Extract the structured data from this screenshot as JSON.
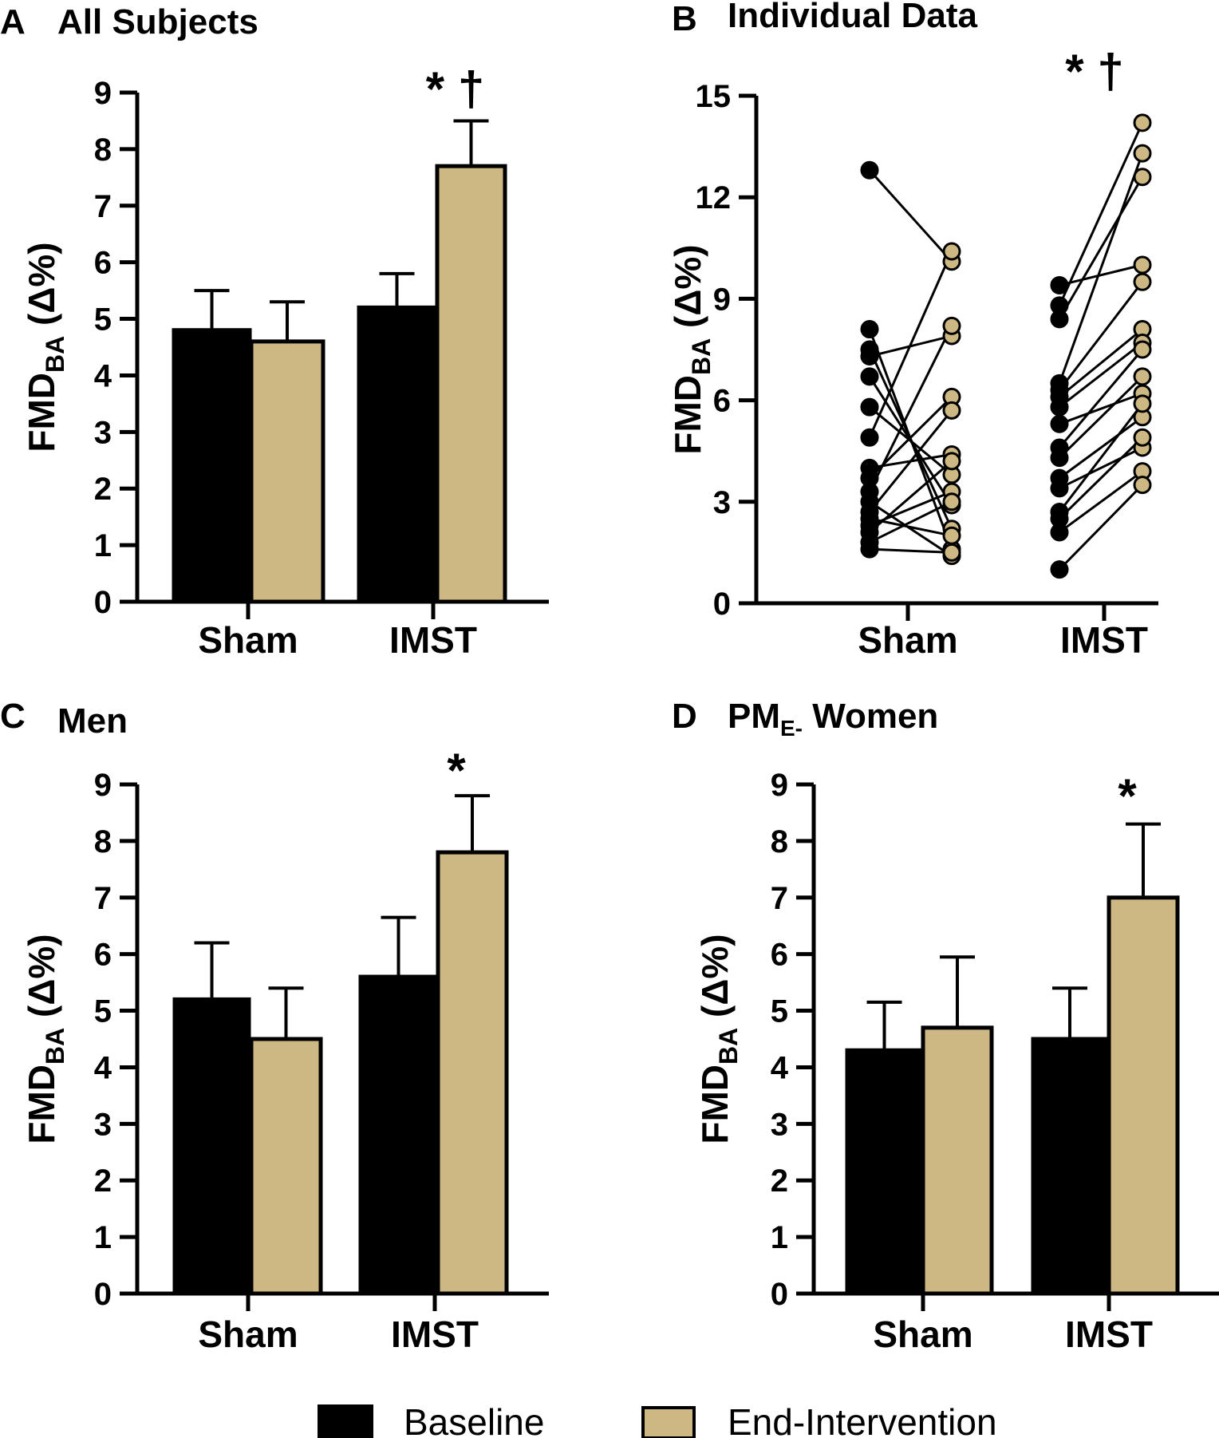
{
  "colors": {
    "baseline": "#000000",
    "end": "#cdb883",
    "axis": "#000000"
  },
  "legend": [
    {
      "label": "Baseline",
      "color_key": "baseline"
    },
    {
      "label": "End-Intervention",
      "color_key": "end"
    }
  ],
  "chart_data": [
    {
      "type": "bar",
      "panel": "A",
      "title": "All Subjects",
      "ylabel": "FMD",
      "ylabel_sub": "BA",
      "ylabel_tail": " (Δ%)",
      "ylim": [
        0,
        9
      ],
      "yticks": [
        0,
        1,
        2,
        3,
        4,
        5,
        6,
        7,
        8,
        9
      ],
      "categories": [
        "Sham",
        "IMST"
      ],
      "series": [
        {
          "name": "Baseline",
          "values": [
            4.8,
            5.2
          ],
          "errors": [
            0.7,
            0.6
          ]
        },
        {
          "name": "End-Intervention",
          "values": [
            4.6,
            7.7
          ],
          "errors": [
            0.7,
            0.8
          ]
        }
      ],
      "significance": [
        "",
        "* †"
      ]
    },
    {
      "type": "scatter",
      "panel": "B",
      "title": "Individual Data",
      "ylabel": "FMD",
      "ylabel_sub": "BA",
      "ylabel_tail": " (Δ%)",
      "ylim": [
        0,
        15
      ],
      "yticks": [
        0,
        3,
        6,
        9,
        12,
        15
      ],
      "categories": [
        "Sham",
        "IMST"
      ],
      "pairs": [
        {
          "group": "Sham",
          "baseline": [
            12.8,
            8.1,
            7.5,
            7.3,
            6.7,
            5.8,
            4.9,
            4.0,
            3.7,
            3.3,
            3.0,
            2.7,
            2.5,
            2.3,
            2.1,
            1.8,
            1.6
          ],
          "end": [
            10.1,
            1.6,
            2.2,
            7.9,
            2.9,
            3.8,
            10.4,
            4.4,
            6.1,
            8.2,
            1.4,
            5.7,
            2.0,
            3.3,
            4.2,
            3.0,
            1.5
          ]
        },
        {
          "group": "IMST",
          "baseline": [
            9.4,
            8.8,
            8.4,
            6.5,
            6.3,
            6.1,
            5.8,
            5.3,
            4.6,
            4.3,
            3.7,
            3.4,
            2.7,
            2.5,
            2.1,
            1.0
          ],
          "end": [
            10.0,
            14.2,
            12.6,
            13.3,
            9.5,
            8.1,
            7.7,
            6.2,
            7.5,
            6.7,
            5.5,
            4.6,
            5.9,
            4.9,
            3.9,
            3.5
          ]
        }
      ],
      "significance": [
        "",
        "* †"
      ]
    },
    {
      "type": "bar",
      "panel": "C",
      "title": "Men",
      "ylabel": "FMD",
      "ylabel_sub": "BA",
      "ylabel_tail": " (Δ%)",
      "ylim": [
        0,
        9
      ],
      "yticks": [
        0,
        1,
        2,
        3,
        4,
        5,
        6,
        7,
        8,
        9
      ],
      "categories": [
        "Sham",
        "IMST"
      ],
      "series": [
        {
          "name": "Baseline",
          "values": [
            5.2,
            5.6
          ],
          "errors": [
            1.0,
            1.05
          ]
        },
        {
          "name": "End-Intervention",
          "values": [
            4.5,
            7.8
          ],
          "errors": [
            0.9,
            1.0
          ]
        }
      ],
      "significance": [
        "",
        "*"
      ]
    },
    {
      "type": "bar",
      "panel": "D",
      "title": "PM",
      "title_sub": "E-",
      "title_tail": " Women",
      "ylabel": "FMD",
      "ylabel_sub": "BA",
      "ylabel_tail": " (Δ%)",
      "ylim": [
        0,
        9
      ],
      "yticks": [
        0,
        1,
        2,
        3,
        4,
        5,
        6,
        7,
        8,
        9
      ],
      "categories": [
        "Sham",
        "IMST"
      ],
      "series": [
        {
          "name": "Baseline",
          "values": [
            4.3,
            4.5
          ],
          "errors": [
            0.85,
            0.9
          ]
        },
        {
          "name": "End-Intervention",
          "values": [
            4.7,
            7.0
          ],
          "errors": [
            1.25,
            1.3
          ]
        }
      ],
      "significance": [
        "",
        "*"
      ]
    }
  ]
}
